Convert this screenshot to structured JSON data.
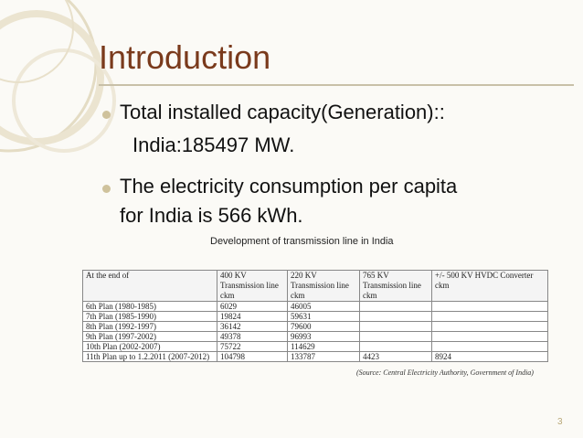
{
  "slide": {
    "title": "Introduction",
    "bullets": [
      {
        "lines": [
          "Total installed capacity(Generation)::",
          "India:185497 MW."
        ]
      },
      {
        "lines": [
          "The electricity consumption per capita",
          "for India is 566 kWh."
        ]
      }
    ],
    "table_caption": "Development of transmission line in India",
    "table": {
      "headers": [
        "At the end of",
        "400 KV Transmission line ckm",
        "220 KV Transmission line ckm",
        "765 KV Transmission line ckm",
        "+/- 500 KV HVDC Converter ckm"
      ],
      "rows": [
        [
          "6th Plan (1980-1985)",
          "6029",
          "46005",
          "",
          ""
        ],
        [
          "7th Plan (1985-1990)",
          "19824",
          "59631",
          "",
          ""
        ],
        [
          "8th Plan (1992-1997)",
          "36142",
          "79600",
          "",
          ""
        ],
        [
          "9th Plan (1997-2002)",
          "49378",
          "96993",
          "",
          ""
        ],
        [
          "10th Plan (2002-2007)",
          "75722",
          "114629",
          "",
          ""
        ],
        [
          "11th Plan up to 1.2.2011 (2007-2012)",
          "104798",
          "133787",
          "4423",
          "8924"
        ]
      ]
    },
    "source": "(Source: Central Electricity Authority, Government of India)",
    "page_number": "3"
  },
  "colors": {
    "title": "#7a3a1c",
    "accent": "#cfc29c",
    "background": "#fbfaf6"
  }
}
